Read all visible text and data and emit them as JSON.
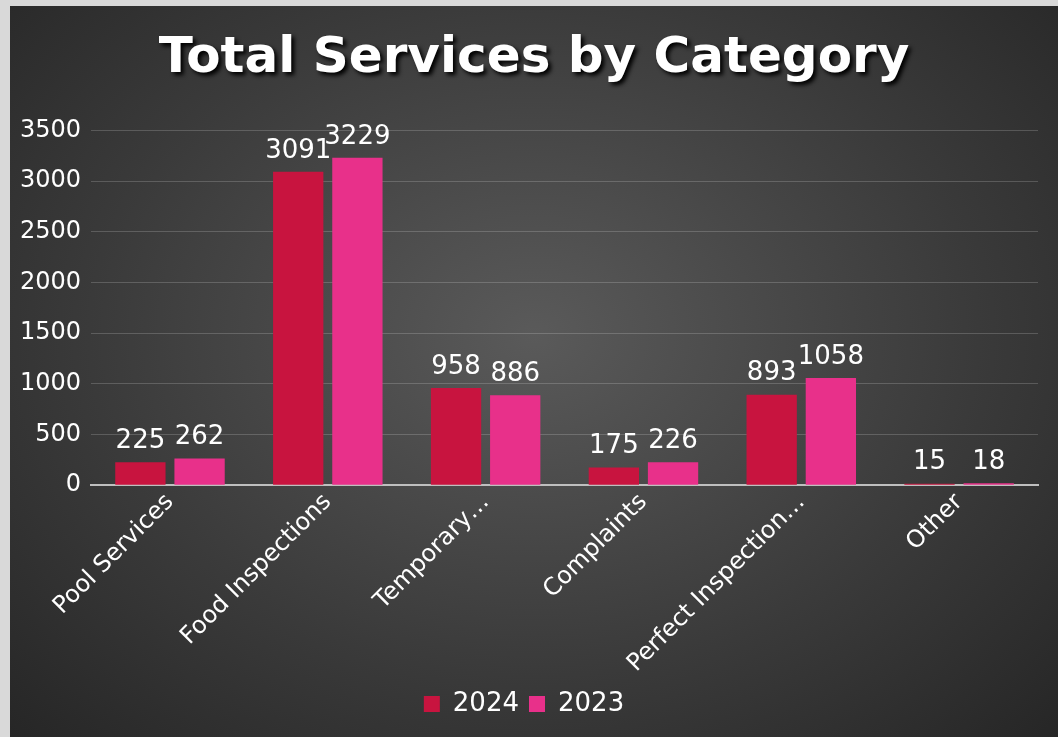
{
  "chart_data": {
    "type": "bar",
    "title": "Total Services by Category",
    "categories": [
      "Pool Services",
      "Food Inspections",
      "Temporary…",
      "Complaints",
      "Perfect Inspection…",
      "Other"
    ],
    "series": [
      {
        "name": "2024",
        "color": "#c8143f",
        "values": [
          225,
          3091,
          958,
          175,
          893,
          15
        ]
      },
      {
        "name": "2023",
        "color": "#e8308a",
        "values": [
          262,
          3229,
          886,
          226,
          1058,
          18
        ]
      }
    ],
    "ylim": [
      0,
      3500
    ],
    "yticks": [
      0,
      500,
      1000,
      1500,
      2000,
      2500,
      3000,
      3500
    ],
    "grid": "y",
    "legend": "bottom",
    "data_labels": true
  }
}
